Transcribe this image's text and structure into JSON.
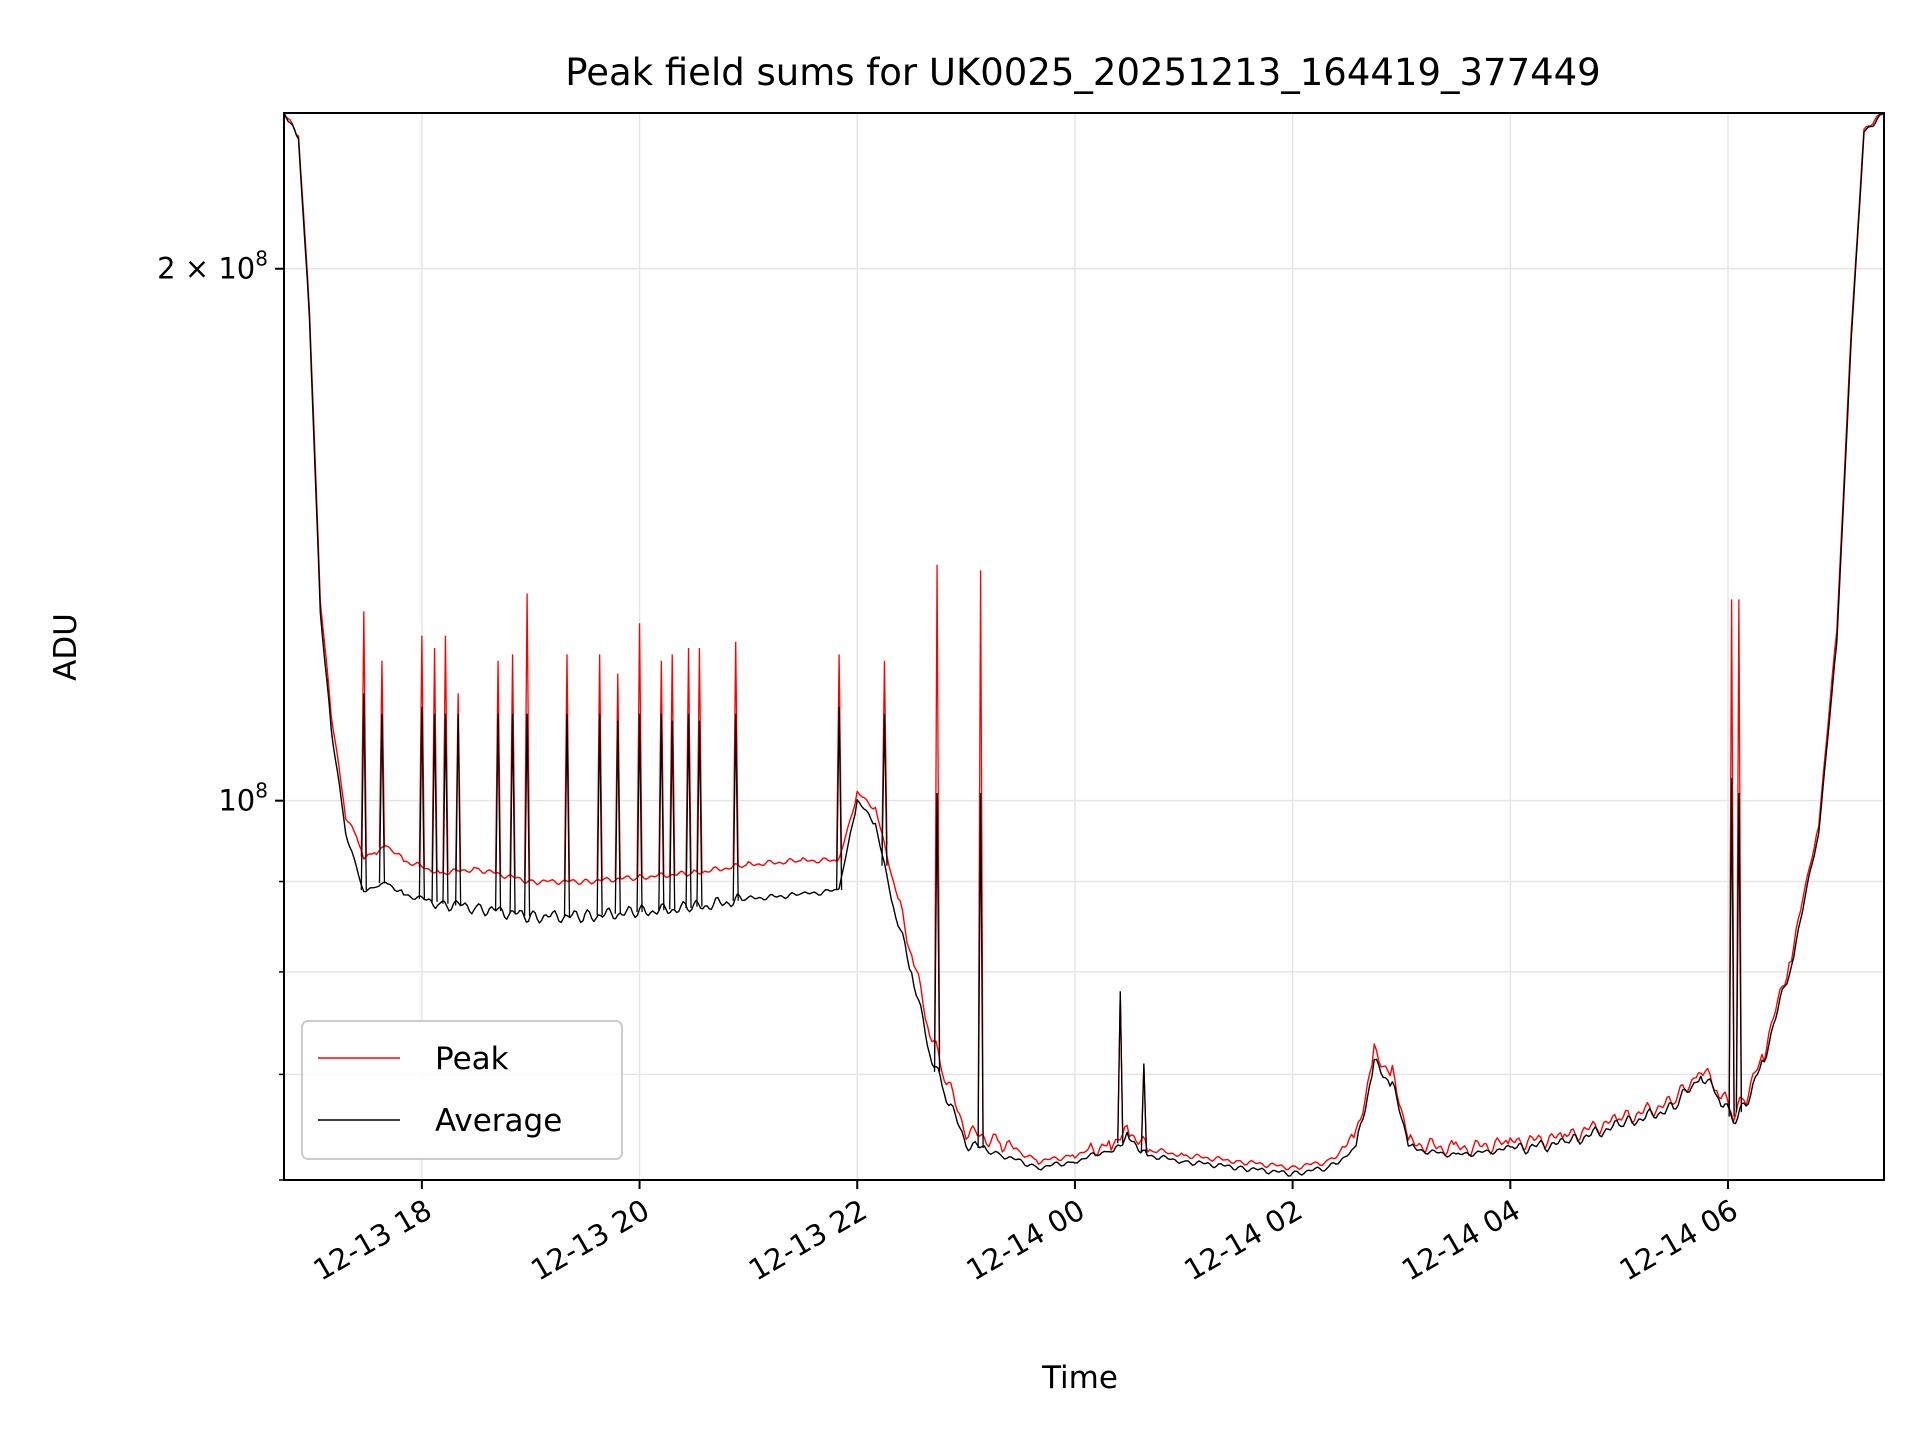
{
  "chart_data": {
    "type": "line",
    "title": "Peak field sums for UK0025_20251213_164419_377449",
    "xlabel": "Time",
    "ylabel": "ADU",
    "y_scale": "log",
    "grid": true,
    "legend_position": "lower-left",
    "xlim": [
      "2025-12-13 16:44",
      "2025-12-14 07:26"
    ],
    "ylim": [
      61000000,
      245000000
    ],
    "x_ticks": [
      {
        "value": "2025-12-13 18:00",
        "label": "12-13 18"
      },
      {
        "value": "2025-12-13 20:00",
        "label": "12-13 20"
      },
      {
        "value": "2025-12-13 22:00",
        "label": "12-13 22"
      },
      {
        "value": "2025-12-14 00:00",
        "label": "12-14 00"
      },
      {
        "value": "2025-12-14 02:00",
        "label": "12-14 02"
      },
      {
        "value": "2025-12-14 04:00",
        "label": "12-14 04"
      },
      {
        "value": "2025-12-14 06:00",
        "label": "12-14 06"
      }
    ],
    "y_ticks_major": [
      {
        "value": 100000000,
        "base": "10",
        "exp": "8",
        "mantissa": ""
      },
      {
        "value": 200000000,
        "base": "10",
        "exp": "8",
        "mantissa": "2 × "
      }
    ],
    "y_ticks_minor": [
      60000000,
      70000000,
      80000000,
      90000000
    ],
    "series": [
      {
        "name": "Peak",
        "color": "#ff0000",
        "x": [
          "2025-12-13 16:44",
          "2025-12-13 16:52",
          "2025-12-13 16:58",
          "2025-12-13 17:04",
          "2025-12-13 17:10",
          "2025-12-13 17:18",
          "2025-12-13 17:25",
          "2025-12-13 17:28",
          "2025-12-13 17:35",
          "2025-12-13 17:40",
          "2025-12-13 17:50",
          "2025-12-13 18:10",
          "2025-12-13 18:30",
          "2025-12-13 19:00",
          "2025-12-13 19:30",
          "2025-12-13 20:00",
          "2025-12-13 20:30",
          "2025-12-13 21:00",
          "2025-12-13 21:30",
          "2025-12-13 21:50",
          "2025-12-13 22:00",
          "2025-12-13 22:10",
          "2025-12-13 22:20",
          "2025-12-13 22:30",
          "2025-12-13 22:40",
          "2025-12-13 22:48",
          "2025-12-13 23:00",
          "2025-12-13 23:20",
          "2025-12-13 23:40",
          "2025-12-14 00:00",
          "2025-12-14 00:20",
          "2025-12-14 00:30",
          "2025-12-14 00:40",
          "2025-12-14 01:00",
          "2025-12-14 01:30",
          "2025-12-14 02:00",
          "2025-12-14 02:20",
          "2025-12-14 02:35",
          "2025-12-14 02:45",
          "2025-12-14 02:55",
          "2025-12-14 03:05",
          "2025-12-14 03:30",
          "2025-12-14 04:00",
          "2025-12-14 04:30",
          "2025-12-14 05:00",
          "2025-12-14 05:30",
          "2025-12-14 05:45",
          "2025-12-14 05:55",
          "2025-12-14 06:03",
          "2025-12-14 06:10",
          "2025-12-14 06:20",
          "2025-12-14 06:35",
          "2025-12-14 06:50",
          "2025-12-14 07:00",
          "2025-12-14 07:08",
          "2025-12-14 07:15",
          "2025-12-14 07:26"
        ],
        "values": [
          245000000,
          238000000,
          190000000,
          130000000,
          112000000,
          98000000,
          95000000,
          93000000,
          93500000,
          94500000,
          92500000,
          91000000,
          91500000,
          90000000,
          90000000,
          90500000,
          91000000,
          92000000,
          92500000,
          92500000,
          101000000,
          99000000,
          90000000,
          82000000,
          74000000,
          70000000,
          65000000,
          64000000,
          62500000,
          63000000,
          64000000,
          65000000,
          63500000,
          63000000,
          62500000,
          62000000,
          62500000,
          64500000,
          72000000,
          70000000,
          64000000,
          63500000,
          64000000,
          64500000,
          66000000,
          67500000,
          70500000,
          68500000,
          66500000,
          68000000,
          72000000,
          82000000,
          97000000,
          125000000,
          185000000,
          240000000,
          245000000
        ],
        "spikes": [
          {
            "x": "2025-12-13 17:28",
            "value": 128000000
          },
          {
            "x": "2025-12-13 17:38",
            "value": 120000000
          },
          {
            "x": "2025-12-13 18:00",
            "value": 124000000
          },
          {
            "x": "2025-12-13 18:07",
            "value": 122000000
          },
          {
            "x": "2025-12-13 18:13",
            "value": 124000000
          },
          {
            "x": "2025-12-13 18:20",
            "value": 115000000
          },
          {
            "x": "2025-12-13 18:42",
            "value": 120000000
          },
          {
            "x": "2025-12-13 18:50",
            "value": 121000000
          },
          {
            "x": "2025-12-13 18:58",
            "value": 131000000
          },
          {
            "x": "2025-12-13 19:20",
            "value": 121000000
          },
          {
            "x": "2025-12-13 19:38",
            "value": 121000000
          },
          {
            "x": "2025-12-13 19:48",
            "value": 118000000
          },
          {
            "x": "2025-12-13 20:00",
            "value": 126000000
          },
          {
            "x": "2025-12-13 20:12",
            "value": 120000000
          },
          {
            "x": "2025-12-13 20:18",
            "value": 121000000
          },
          {
            "x": "2025-12-13 20:27",
            "value": 122000000
          },
          {
            "x": "2025-12-13 20:33",
            "value": 122000000
          },
          {
            "x": "2025-12-13 20:53",
            "value": 123000000
          },
          {
            "x": "2025-12-13 21:50",
            "value": 121000000
          },
          {
            "x": "2025-12-13 22:15",
            "value": 120000000
          },
          {
            "x": "2025-12-13 22:44",
            "value": 136000000
          },
          {
            "x": "2025-12-13 23:08",
            "value": 135000000
          },
          {
            "x": "2025-12-14 00:25",
            "value": 78000000
          },
          {
            "x": "2025-12-14 00:38",
            "value": 71000000
          },
          {
            "x": "2025-12-14 06:02",
            "value": 130000000
          },
          {
            "x": "2025-12-14 06:06",
            "value": 130000000
          }
        ]
      },
      {
        "name": "Average",
        "color": "#000000",
        "x": [
          "2025-12-13 16:44",
          "2025-12-13 16:52",
          "2025-12-13 16:58",
          "2025-12-13 17:04",
          "2025-12-13 17:10",
          "2025-12-13 17:18",
          "2025-12-13 17:25",
          "2025-12-13 17:28",
          "2025-12-13 17:35",
          "2025-12-13 17:40",
          "2025-12-13 17:50",
          "2025-12-13 18:10",
          "2025-12-13 18:30",
          "2025-12-13 19:00",
          "2025-12-13 19:30",
          "2025-12-13 20:00",
          "2025-12-13 20:30",
          "2025-12-13 21:00",
          "2025-12-13 21:30",
          "2025-12-13 21:50",
          "2025-12-13 22:00",
          "2025-12-13 22:10",
          "2025-12-13 22:20",
          "2025-12-13 22:30",
          "2025-12-13 22:40",
          "2025-12-13 22:48",
          "2025-12-13 23:00",
          "2025-12-13 23:20",
          "2025-12-13 23:40",
          "2025-12-14 00:00",
          "2025-12-14 00:20",
          "2025-12-14 00:30",
          "2025-12-14 00:40",
          "2025-12-14 01:00",
          "2025-12-14 01:30",
          "2025-12-14 02:00",
          "2025-12-14 02:20",
          "2025-12-14 02:35",
          "2025-12-14 02:45",
          "2025-12-14 02:55",
          "2025-12-14 03:05",
          "2025-12-14 03:30",
          "2025-12-14 04:00",
          "2025-12-14 04:30",
          "2025-12-14 05:00",
          "2025-12-14 05:30",
          "2025-12-14 05:45",
          "2025-12-14 05:55",
          "2025-12-14 06:03",
          "2025-12-14 06:10",
          "2025-12-14 06:20",
          "2025-12-14 06:35",
          "2025-12-14 06:50",
          "2025-12-14 07:00",
          "2025-12-14 07:08",
          "2025-12-14 07:15",
          "2025-12-14 07:26"
        ],
        "values": [
          245000000,
          237000000,
          188000000,
          128000000,
          110000000,
          96000000,
          91000000,
          89000000,
          89500000,
          90000000,
          88500000,
          87500000,
          87000000,
          86000000,
          86000000,
          86500000,
          87000000,
          88000000,
          88500000,
          89000000,
          100000000,
          97000000,
          87000000,
          80000000,
          72000000,
          68500000,
          64000000,
          63000000,
          62000000,
          62500000,
          63500000,
          64500000,
          63000000,
          62500000,
          62000000,
          61500000,
          62000000,
          63500000,
          71000000,
          69000000,
          63500000,
          63000000,
          63500000,
          64000000,
          65500000,
          67000000,
          70000000,
          68000000,
          66000000,
          67500000,
          71500000,
          81000000,
          96000000,
          123000000,
          183000000,
          239000000,
          245000000
        ],
        "spikes": [
          {
            "x": "2025-12-13 17:28",
            "value": 115000000
          },
          {
            "x": "2025-12-13 17:38",
            "value": 112000000
          },
          {
            "x": "2025-12-13 18:00",
            "value": 113000000
          },
          {
            "x": "2025-12-13 18:07",
            "value": 112000000
          },
          {
            "x": "2025-12-13 18:13",
            "value": 112000000
          },
          {
            "x": "2025-12-13 18:20",
            "value": 112000000
          },
          {
            "x": "2025-12-13 18:42",
            "value": 112000000
          },
          {
            "x": "2025-12-13 18:50",
            "value": 112000000
          },
          {
            "x": "2025-12-13 18:58",
            "value": 112000000
          },
          {
            "x": "2025-12-13 19:20",
            "value": 112000000
          },
          {
            "x": "2025-12-13 19:38",
            "value": 112000000
          },
          {
            "x": "2025-12-13 19:48",
            "value": 111000000
          },
          {
            "x": "2025-12-13 20:00",
            "value": 112000000
          },
          {
            "x": "2025-12-13 20:12",
            "value": 112000000
          },
          {
            "x": "2025-12-13 20:18",
            "value": 111000000
          },
          {
            "x": "2025-12-13 20:27",
            "value": 112000000
          },
          {
            "x": "2025-12-13 20:33",
            "value": 111000000
          },
          {
            "x": "2025-12-13 20:53",
            "value": 112000000
          },
          {
            "x": "2025-12-13 21:50",
            "value": 113000000
          },
          {
            "x": "2025-12-13 22:15",
            "value": 112000000
          },
          {
            "x": "2025-12-13 22:44",
            "value": 101000000
          },
          {
            "x": "2025-12-13 23:08",
            "value": 101000000
          },
          {
            "x": "2025-12-14 00:25",
            "value": 78000000
          },
          {
            "x": "2025-12-14 00:38",
            "value": 71000000
          },
          {
            "x": "2025-12-14 06:02",
            "value": 103000000
          },
          {
            "x": "2025-12-14 06:06",
            "value": 101000000
          }
        ]
      }
    ]
  }
}
